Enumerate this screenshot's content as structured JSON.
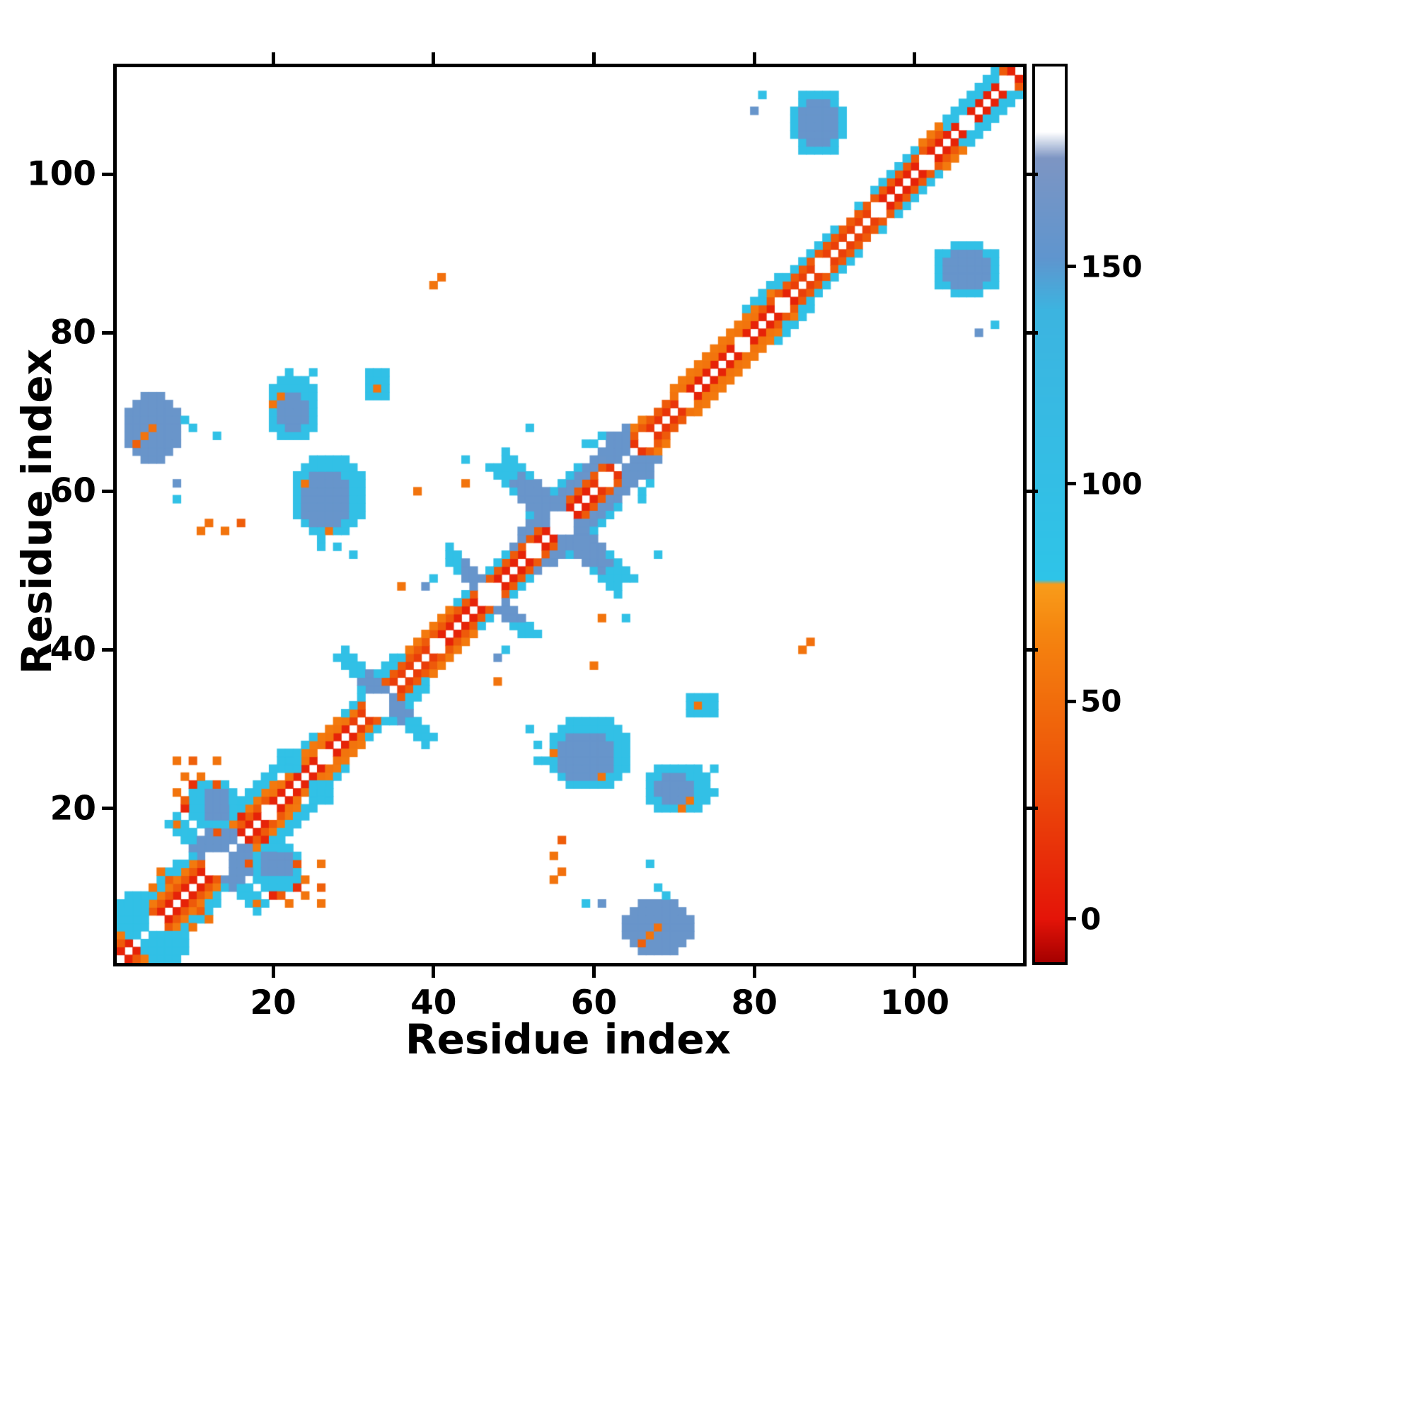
{
  "chart_data": {
    "type": "heatmap",
    "title": "",
    "xlabel": "Residue index",
    "ylabel": "Residue index",
    "n_residues": 113,
    "x_range": [
      1,
      113
    ],
    "y_range": [
      1,
      113
    ],
    "x_ticks": [
      20,
      40,
      60,
      80,
      100
    ],
    "y_ticks": [
      20,
      40,
      60,
      80,
      100
    ],
    "grid": false,
    "background": "#ffffff",
    "colorbar": {
      "orientation": "vertical",
      "ticks": [
        0,
        50,
        100,
        150
      ],
      "vmin": -10,
      "vmax": 196,
      "colormap": [
        [
          -10,
          "#a50000"
        ],
        [
          0,
          "#e41408"
        ],
        [
          38,
          "#ee5a0a"
        ],
        [
          66,
          "#f5850f"
        ],
        [
          77,
          "#f99c1a"
        ],
        [
          78,
          "#2ec4e8"
        ],
        [
          140,
          "#3cb4e0"
        ],
        [
          152,
          "#5f95ce"
        ],
        [
          175,
          "#7d95c3"
        ],
        [
          181,
          "#ffffff"
        ],
        [
          196,
          "#ffffff"
        ]
      ]
    },
    "matrix": {
      "symmetric": true,
      "bands": [
        [
          1,
          112,
          1,
          8
        ],
        [
          1,
          111,
          2,
          38
        ],
        [
          20,
          30,
          2,
          55
        ],
        [
          70,
          80,
          2,
          55
        ],
        [
          30,
          40,
          1,
          22
        ],
        [
          60,
          70,
          1,
          18
        ],
        [
          85,
          94,
          1,
          24
        ],
        [
          1,
          20,
          3,
          58
        ],
        [
          24,
          44,
          3,
          58
        ],
        [
          49,
          66,
          3,
          58
        ],
        [
          70,
          90,
          3,
          58
        ],
        [
          96,
          111,
          3,
          58
        ],
        [
          1,
          10,
          4,
          95
        ],
        [
          2,
          8,
          5,
          90
        ],
        [
          10,
          25,
          4,
          92
        ],
        [
          14,
          20,
          5,
          92
        ],
        [
          29,
          36,
          3,
          90
        ],
        [
          31,
          35,
          4,
          90
        ],
        [
          43,
          49,
          3,
          92
        ],
        [
          50,
          61,
          3,
          160
        ],
        [
          51,
          60,
          4,
          158
        ],
        [
          52,
          58,
          5,
          96
        ],
        [
          61,
          64,
          4,
          158
        ],
        [
          79,
          83,
          4,
          90
        ],
        [
          83,
          87,
          3,
          90
        ],
        [
          87,
          90,
          3,
          92
        ],
        [
          95,
          100,
          3,
          95
        ],
        [
          104,
          110,
          2,
          92
        ],
        [
          104,
          112,
          3,
          92
        ]
      ],
      "arms": [
        [
          26,
          8,
          18,
          1,
          90
        ],
        [
          26,
          11,
          15,
          1,
          158
        ],
        [
          68,
          29,
          39,
          1,
          92
        ],
        [
          68,
          32,
          36,
          1,
          158
        ],
        [
          94,
          42,
          51,
          1,
          92
        ],
        [
          94,
          44,
          49,
          1,
          158
        ],
        [
          112,
          49,
          63,
          2,
          95
        ],
        [
          112,
          51,
          61,
          1,
          160
        ],
        [
          112,
          53,
          59,
          2,
          160
        ]
      ],
      "blobs": [
        [
          64,
          72,
          2,
          8,
          160,
          1
        ],
        [
          67,
          74,
          20,
          25,
          95,
          1
        ],
        [
          68,
          72,
          21,
          24,
          158,
          1
        ],
        [
          55,
          64,
          23,
          31,
          95,
          1
        ],
        [
          56,
          62,
          24,
          29,
          158,
          1
        ],
        [
          103,
          110,
          85,
          91,
          95,
          1
        ],
        [
          104,
          109,
          86,
          90,
          158,
          1
        ],
        [
          1,
          4,
          4,
          9,
          92,
          1
        ],
        [
          18,
          23,
          10,
          15,
          95,
          1
        ],
        [
          19,
          22,
          12,
          14,
          158,
          1
        ],
        [
          12,
          15,
          14,
          17,
          158,
          1
        ],
        [
          25,
          27,
          21,
          23,
          90,
          1
        ],
        [
          72,
          75,
          32,
          34,
          92,
          1
        ],
        [
          62,
          64,
          64,
          67,
          158,
          1
        ]
      ],
      "points": [
        [
          67,
          4,
          55
        ],
        [
          68,
          5,
          52
        ],
        [
          66,
          3,
          42
        ],
        [
          69,
          9,
          92
        ],
        [
          68,
          10,
          90
        ],
        [
          61,
          8,
          158
        ],
        [
          72,
          21,
          55
        ],
        [
          71,
          20,
          55
        ],
        [
          75,
          22,
          90
        ],
        [
          75,
          25,
          90
        ],
        [
          61,
          24,
          55
        ],
        [
          55,
          27,
          55
        ],
        [
          53,
          26,
          90
        ],
        [
          53,
          28,
          90
        ],
        [
          54,
          26,
          92
        ],
        [
          52,
          30,
          95
        ],
        [
          86,
          40,
          55
        ],
        [
          87,
          41,
          52
        ],
        [
          60,
          38,
          55
        ],
        [
          48,
          36,
          55
        ],
        [
          61,
          44,
          55
        ],
        [
          64,
          44,
          90
        ],
        [
          48,
          39,
          158
        ],
        [
          49,
          40,
          95
        ],
        [
          52,
          68,
          90
        ],
        [
          13,
          67,
          90
        ],
        [
          8,
          59,
          90
        ],
        [
          14,
          55,
          55
        ],
        [
          16,
          56,
          40
        ],
        [
          110,
          81,
          95
        ],
        [
          108,
          80,
          158
        ],
        [
          84,
          81,
          90
        ],
        [
          66,
          60,
          90
        ],
        [
          67,
          61,
          92
        ],
        [
          66,
          59,
          90
        ],
        [
          73,
          33,
          55
        ],
        [
          20,
          9,
          10
        ],
        [
          23,
          13,
          35
        ],
        [
          24,
          11,
          55
        ],
        [
          22,
          8,
          55
        ],
        [
          18,
          8,
          55
        ],
        [
          24,
          9,
          55
        ],
        [
          8,
          26,
          55
        ],
        [
          10,
          23,
          15
        ],
        [
          13,
          26,
          55
        ],
        [
          29,
          27,
          55
        ],
        [
          5,
          10,
          55
        ],
        [
          7,
          11,
          40
        ],
        [
          6,
          12,
          55
        ],
        [
          19,
          16,
          10
        ],
        [
          17,
          13,
          35
        ],
        [
          55,
          11,
          55
        ],
        [
          56,
          12,
          52
        ],
        [
          93,
          96,
          90
        ],
        [
          9,
          21,
          40
        ],
        [
          26,
          10,
          42
        ]
      ],
      "holes": [
        [
          5,
          6,
          5,
          6
        ],
        [
          12,
          14,
          12,
          14
        ],
        [
          19,
          20,
          19,
          20
        ],
        [
          26,
          27,
          26,
          27
        ],
        [
          32,
          34,
          32,
          34
        ],
        [
          40,
          41,
          40,
          41
        ],
        [
          46,
          48,
          46,
          48
        ],
        [
          52,
          53,
          52,
          53
        ],
        [
          55,
          57,
          55,
          57
        ],
        [
          61,
          62,
          61,
          62
        ],
        [
          66,
          67,
          66,
          67
        ],
        [
          71,
          72,
          71,
          72
        ],
        [
          78,
          79,
          78,
          79
        ],
        [
          83,
          84,
          83,
          84
        ],
        [
          88,
          89,
          88,
          89
        ],
        [
          95,
          96,
          95,
          96
        ],
        [
          101,
          102,
          101,
          102
        ],
        [
          106,
          107,
          106,
          107
        ],
        [
          111,
          112,
          111,
          112
        ]
      ]
    }
  }
}
